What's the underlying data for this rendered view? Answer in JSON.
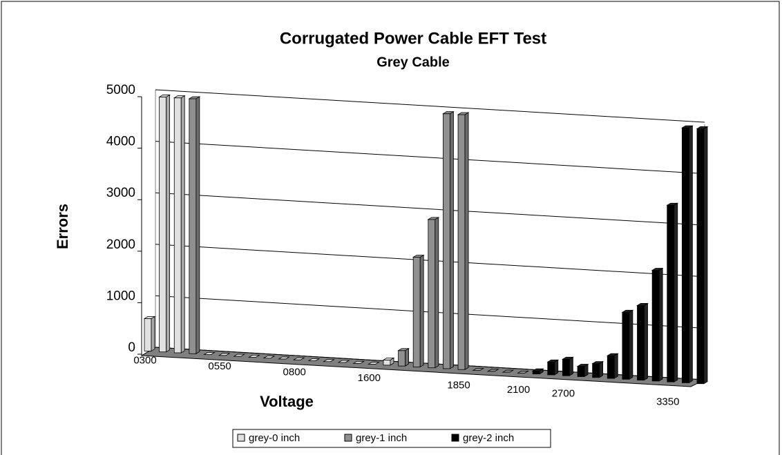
{
  "chart_data": {
    "type": "bar3d",
    "title": "Corrugated Power Cable EFT Test",
    "subtitle": "Grey Cable",
    "ylabel": "Errors",
    "xlabel": "Voltage",
    "categories": [
      "0300",
      null,
      null,
      null,
      null,
      "0550",
      null,
      null,
      null,
      null,
      "0800",
      null,
      null,
      null,
      null,
      "1600",
      null,
      null,
      null,
      null,
      null,
      "1850",
      null,
      null,
      null,
      "2100",
      null,
      null,
      "2700",
      null,
      null,
      null,
      null,
      null,
      null,
      "3350",
      null,
      null
    ],
    "series": [
      {
        "name": "grey-0 inch",
        "color": "#e0e0e0",
        "values": [
          630,
          4950,
          4950,
          null,
          0,
          0,
          0,
          0,
          0,
          0,
          0,
          0,
          0,
          0,
          0,
          0,
          100,
          null,
          null,
          null,
          null,
          null,
          null,
          null,
          null,
          null,
          null,
          null,
          null,
          null,
          null,
          null,
          null,
          null,
          null,
          null,
          null,
          null
        ]
      },
      {
        "name": "grey-1 inch",
        "color": "#909090",
        "values": [
          null,
          null,
          null,
          4950,
          null,
          null,
          null,
          null,
          null,
          null,
          null,
          null,
          null,
          null,
          null,
          null,
          null,
          300,
          2130,
          2880,
          4950,
          4950,
          0,
          0,
          0,
          0,
          null,
          null,
          null,
          null,
          null,
          null,
          null,
          null,
          null,
          null,
          null,
          null
        ]
      },
      {
        "name": "grey-2 inch",
        "color": "#000000",
        "values": [
          null,
          null,
          null,
          null,
          null,
          null,
          null,
          null,
          null,
          null,
          null,
          null,
          null,
          null,
          null,
          null,
          null,
          null,
          null,
          null,
          null,
          null,
          null,
          null,
          null,
          null,
          60,
          250,
          320,
          200,
          270,
          440,
          1300,
          1450,
          2150,
          3430,
          4950,
          4950
        ]
      }
    ],
    "ylim": [
      0,
      5000
    ],
    "yticks": [
      0,
      1000,
      2000,
      3000,
      4000,
      5000
    ],
    "grid": true
  }
}
